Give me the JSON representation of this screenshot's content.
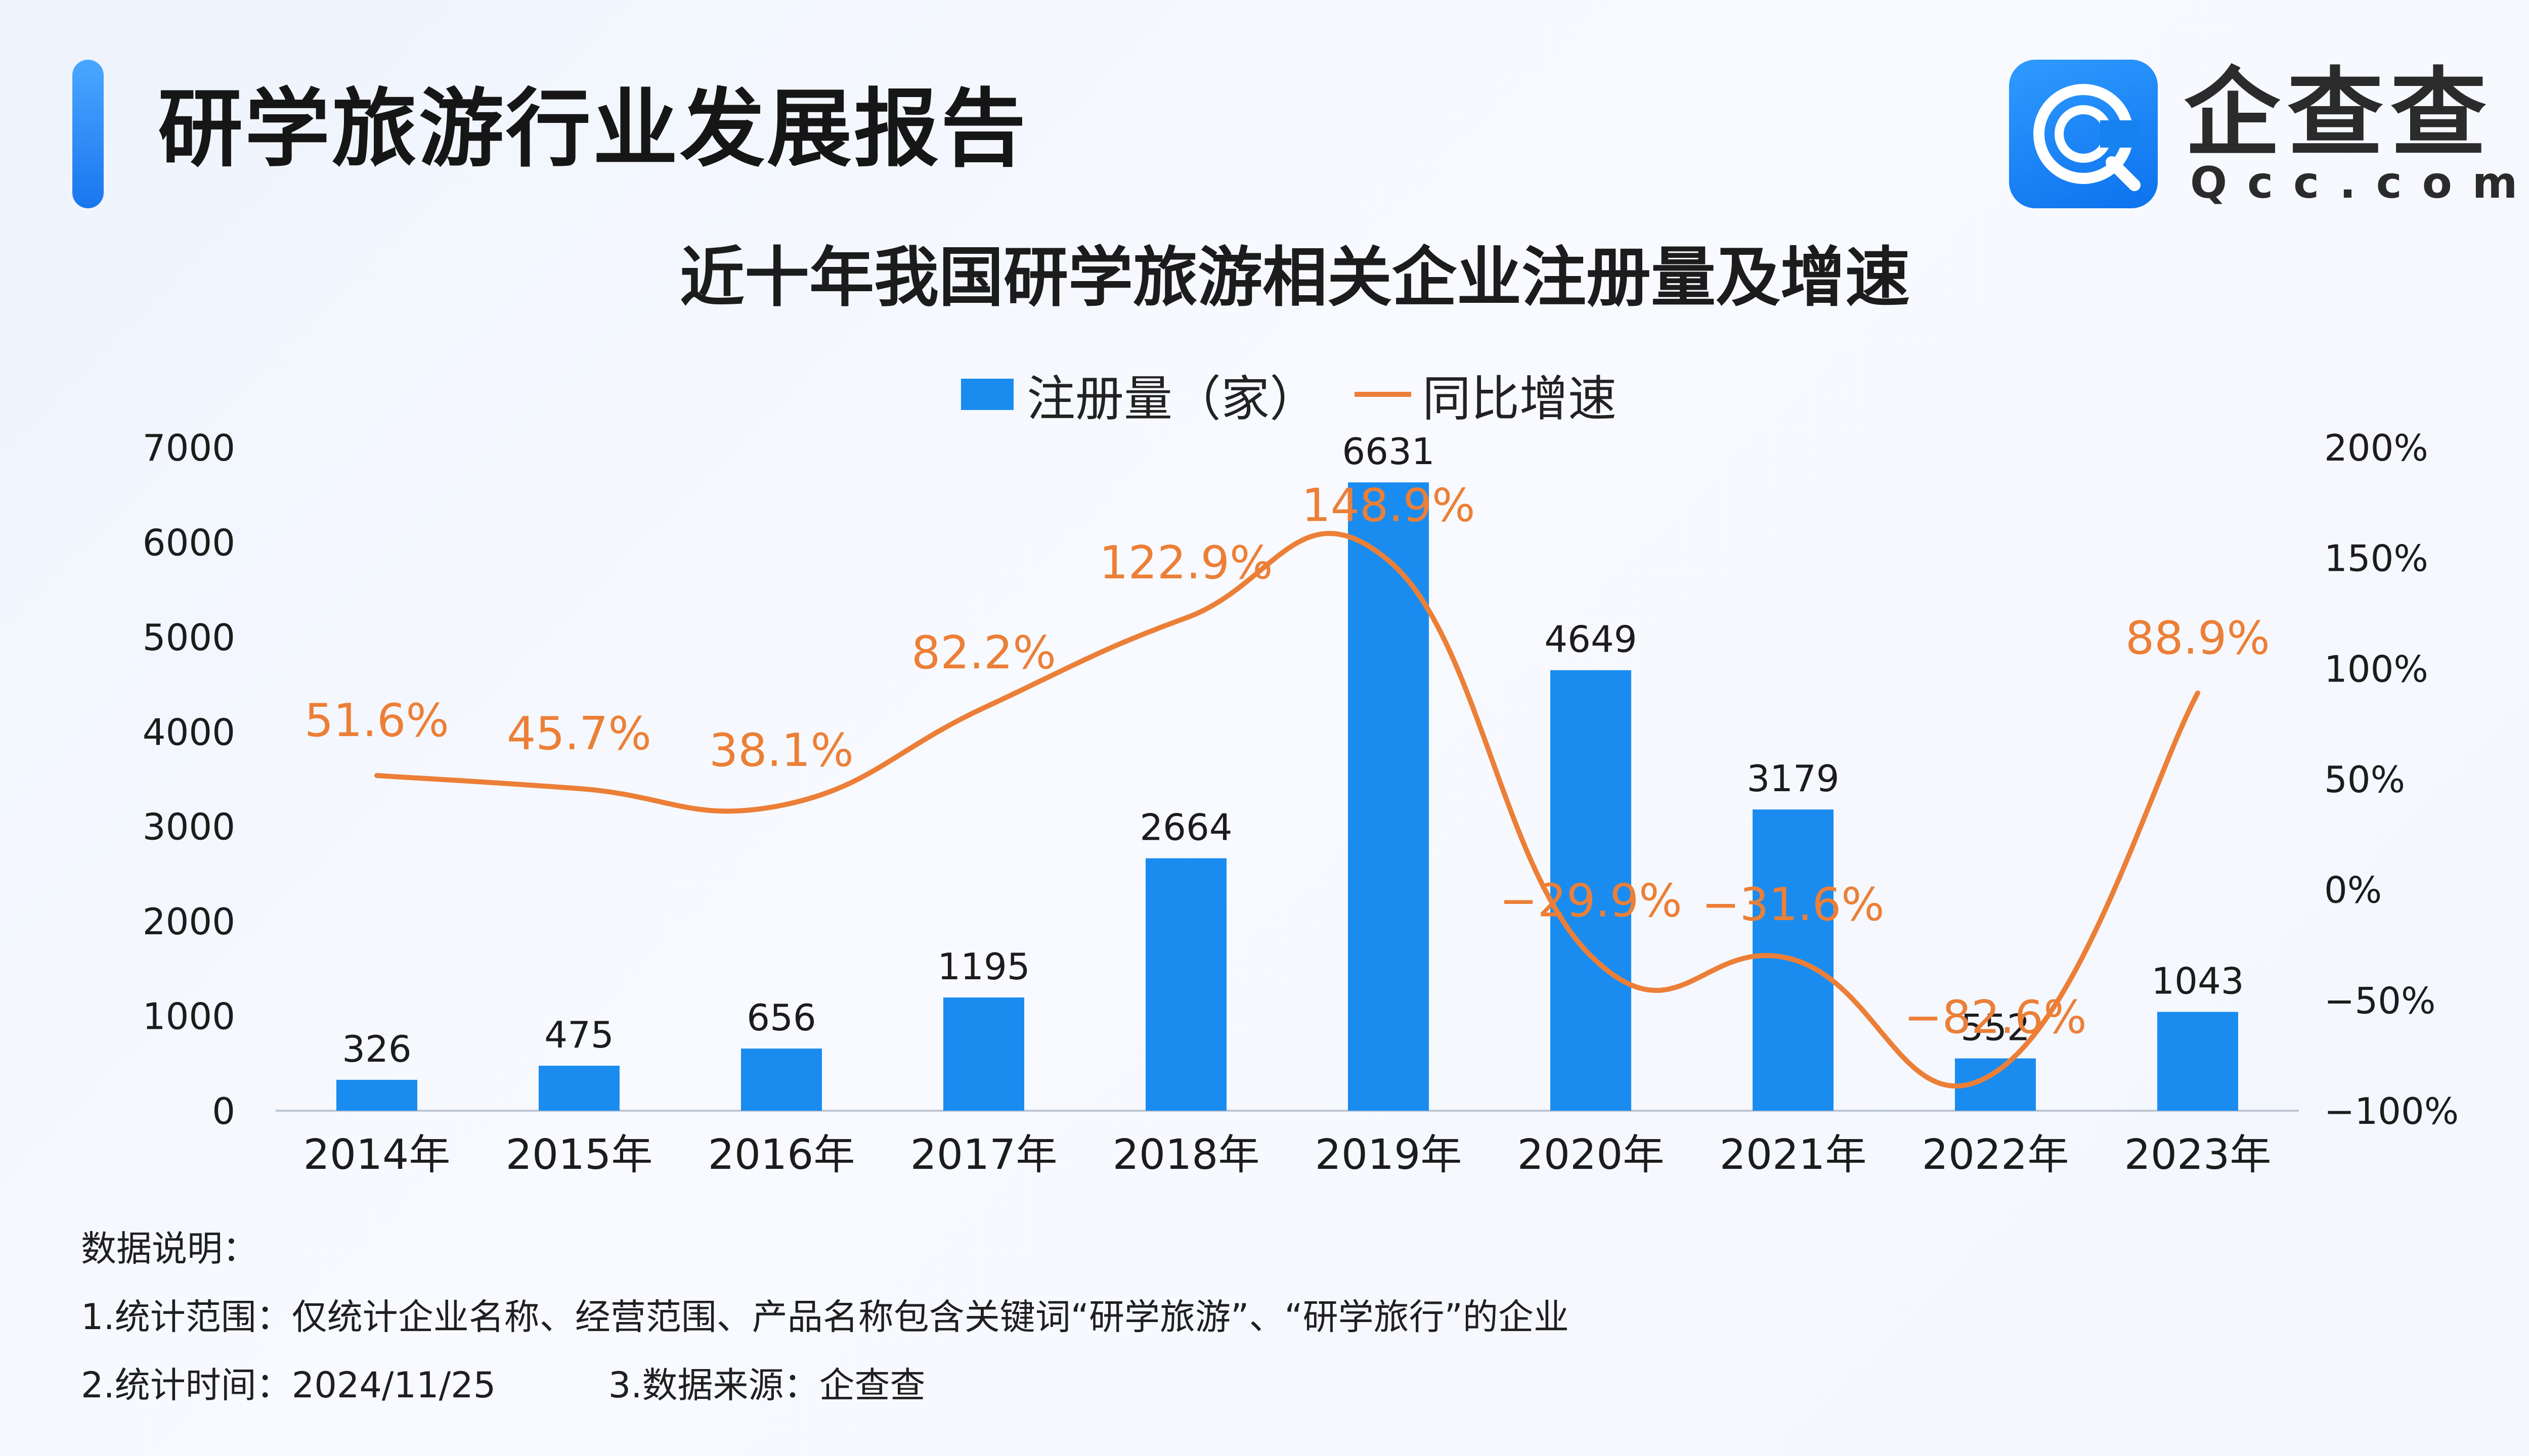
{
  "report_title": "研学旅游行业发展报告",
  "logo": {
    "name_cn": "企查查",
    "name_en": "Qcc.com",
    "icon": "qcc-logo-icon"
  },
  "notes": {
    "heading": "数据说明：",
    "line1": "1.统计范围：仅统计企业名称、经营范围、产品名称包含关键词“研学旅游”、“研学旅行”的企业",
    "line2": "2.统计时间：2024/11/25",
    "line3": "3.数据来源：企查查"
  },
  "colors": {
    "bar": "#1a8cf0",
    "line": "#ec7f37",
    "axis": "#bfc6d2",
    "label": "#1c1c1c"
  },
  "chart_data": {
    "type": "bar+line",
    "title": "近十年我国研学旅游相关企业注册量及增速",
    "categories": [
      "2014年",
      "2015年",
      "2016年",
      "2017年",
      "2018年",
      "2019年",
      "2020年",
      "2021年",
      "2022年",
      "2023年"
    ],
    "series": [
      {
        "name": "注册量（家）",
        "type": "bar",
        "axis": "left",
        "values": [
          326,
          475,
          656,
          1195,
          2664,
          6631,
          4649,
          3179,
          552,
          1043
        ],
        "labels": [
          "326",
          "475",
          "656",
          "1195",
          "2664",
          "6631",
          "4649",
          "3179",
          "552",
          "1043"
        ]
      },
      {
        "name": "同比增速",
        "type": "line",
        "axis": "right",
        "values": [
          51.6,
          45.7,
          38.1,
          82.2,
          122.9,
          148.9,
          -29.9,
          -31.6,
          -82.6,
          88.9
        ],
        "labels": [
          "51.6%",
          "45.7%",
          "38.1%",
          "82.2%",
          "122.9%",
          "148.9%",
          "−29.9%",
          "−31.6%",
          "−82.6%",
          "88.9%"
        ]
      }
    ],
    "y_left": {
      "min": 0,
      "max": 7000,
      "ticks": [
        "0",
        "1000",
        "2000",
        "3000",
        "4000",
        "5000",
        "6000",
        "7000"
      ]
    },
    "y_right": {
      "min": -100,
      "max": 200,
      "ticks": [
        "−100%",
        "−50%",
        "0%",
        "50%",
        "100%",
        "150%",
        "200%"
      ]
    },
    "legend": "top-center",
    "grid": false
  }
}
